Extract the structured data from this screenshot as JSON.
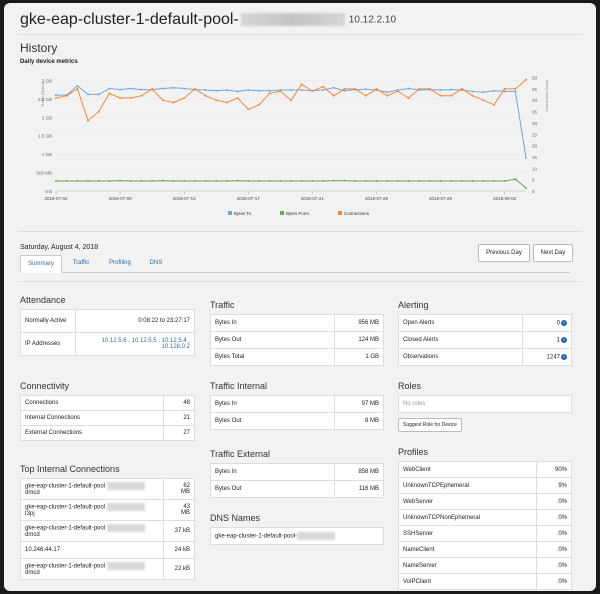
{
  "header": {
    "title_prefix": "gke-eap-cluster-1-default-pool-",
    "ip": "10.12.2.10"
  },
  "history": {
    "title": "History",
    "subtitle": "Daily device metrics"
  },
  "chart_data": {
    "type": "line",
    "x_tick_labels": [
      "2018-07-02",
      "2018-07-09",
      "2018-07-13",
      "2018-07-17",
      "2018-07-21",
      "2018-07-25",
      "2018-07-29",
      "2018-08-02"
    ],
    "y_left_ticks": [
      "3 GB",
      "2.5 GB",
      "2 GB",
      "1.5 GB",
      "1 GB",
      "500 MB",
      "0 B"
    ],
    "y_right_ticks": [
      "50",
      "45",
      "40",
      "35",
      "30",
      "25",
      "20",
      "15",
      "10",
      "5",
      "0"
    ],
    "ylabel_left": "Traffic (Bytes)",
    "ylabel_right": "Connection Count",
    "legend_position": "bottom",
    "series": [
      {
        "name": "Bytes To",
        "color": "#6fa8dc",
        "axis": "left",
        "values": [
          2.6,
          2.6,
          2.85,
          2.62,
          2.62,
          2.78,
          2.75,
          2.78,
          2.75,
          2.75,
          2.78,
          2.8,
          2.78,
          2.75,
          2.74,
          2.72,
          2.74,
          2.7,
          2.74,
          2.72,
          2.72,
          2.74,
          2.74,
          2.74,
          2.72,
          2.74,
          2.8,
          2.72,
          2.75,
          2.76,
          2.74,
          2.68,
          2.74,
          2.78,
          2.74,
          2.75,
          2.74,
          2.75,
          2.74,
          2.7,
          2.68,
          2.72,
          2.7,
          2.7,
          0.9
        ]
      },
      {
        "name": "Bytes From",
        "color": "#6aa84f",
        "axis": "left",
        "values": [
          0.27,
          0.27,
          0.27,
          0.27,
          0.27,
          0.27,
          0.28,
          0.27,
          0.27,
          0.27,
          0.28,
          0.27,
          0.27,
          0.27,
          0.27,
          0.27,
          0.27,
          0.28,
          0.27,
          0.27,
          0.27,
          0.27,
          0.27,
          0.27,
          0.27,
          0.27,
          0.28,
          0.28,
          0.27,
          0.27,
          0.27,
          0.27,
          0.27,
          0.27,
          0.27,
          0.27,
          0.27,
          0.27,
          0.27,
          0.27,
          0.27,
          0.27,
          0.27,
          0.32,
          0.08
        ]
      },
      {
        "name": "Connections",
        "color": "#f6893a",
        "axis": "right",
        "values": [
          41,
          42,
          45,
          31,
          35,
          43,
          41,
          41,
          42,
          45,
          40,
          39,
          41,
          45,
          42,
          40,
          39,
          41,
          36,
          38,
          43,
          44,
          40,
          47,
          44,
          46,
          42,
          45,
          45,
          42,
          45,
          42,
          44,
          41,
          45,
          45,
          42,
          42,
          45,
          42,
          40,
          38,
          45,
          45,
          49
        ]
      }
    ]
  },
  "summary": {
    "date": "Saturday, August 4, 2018",
    "tabs": [
      "Summary",
      "Traffic",
      "Profiling",
      "DNS"
    ],
    "prev_button": "Previous Day",
    "next_button": "Next Day"
  },
  "attendance": {
    "title": "Attendance",
    "normally_active_label": "Normally Active",
    "normally_active_value": "0:08:22 to 23:27:17",
    "ip_label": "IP Addresses",
    "ip_value_line1": "10.12.5.6 , 10.12.5.5 , 10.12.5.4 ,",
    "ip_value_line2": "10.128.0.2"
  },
  "connectivity": {
    "title": "Connectivity",
    "rows": [
      {
        "label": "Connections",
        "value": "48"
      },
      {
        "label": "Internal Connections",
        "value": "21"
      },
      {
        "label": "External Connections",
        "value": "27"
      }
    ]
  },
  "top_internal": {
    "title": "Top Internal Connections",
    "rows": [
      {
        "line1": "gke-eap-cluster-1-default-pool",
        "line2": "dmcd",
        "value1": "62",
        "value2": "MB"
      },
      {
        "line1": "gke-eap-cluster-1-default-pool",
        "line2": "t3pj",
        "value1": "43",
        "value2": "MB"
      },
      {
        "line1": "gke-eap-cluster-1-default-pool",
        "line2": "dmcd",
        "value1": "37 kB",
        "value2": ""
      },
      {
        "line1": "10.246.44.17",
        "line2": "",
        "value1": "24 kB",
        "value2": ""
      },
      {
        "line1": "gke-eap-cluster-1-default-pool",
        "line2": "dmcd",
        "value1": "22 kB",
        "value2": ""
      }
    ]
  },
  "traffic": {
    "title": "Traffic",
    "rows": [
      {
        "label": "Bytes In",
        "value": "956 MB"
      },
      {
        "label": "Bytes Out",
        "value": "124 MB"
      },
      {
        "label": "Bytes Total",
        "value": "1 GB"
      }
    ]
  },
  "traffic_internal": {
    "title": "Traffic Internal",
    "rows": [
      {
        "label": "Bytes In",
        "value": "97 MB"
      },
      {
        "label": "Bytes Out",
        "value": "8 MB"
      }
    ]
  },
  "traffic_external": {
    "title": "Traffic External",
    "rows": [
      {
        "label": "Bytes In",
        "value": "858 MB"
      },
      {
        "label": "Bytes Out",
        "value": "116 MB"
      }
    ]
  },
  "dns": {
    "title": "DNS Names",
    "value": "gke-eap-cluster-1-default-pool-"
  },
  "alerting": {
    "title": "Alerting",
    "rows": [
      {
        "label": "Open Alerts",
        "value": "0"
      },
      {
        "label": "Closed Alerts",
        "value": "1"
      },
      {
        "label": "Observations",
        "value": "1247"
      }
    ],
    "action_icon": "arrow-right-circle-icon"
  },
  "roles": {
    "title": "Roles",
    "empty": "No roles",
    "button": "Suggest Role for Device"
  },
  "profiles": {
    "title": "Profiles",
    "rows": [
      {
        "label": "WebClient",
        "value": "90%"
      },
      {
        "label": "UnknownTCPEphemeral",
        "value": "9%"
      },
      {
        "label": "WebServer",
        "value": "0%"
      },
      {
        "label": "UnknownTCPNonEphemeral",
        "value": "0%"
      },
      {
        "label": "SSHServer",
        "value": "0%"
      },
      {
        "label": "NameClient",
        "value": "0%"
      },
      {
        "label": "NameServer",
        "value": "0%"
      },
      {
        "label": "VoIPClient",
        "value": "0%"
      }
    ]
  }
}
